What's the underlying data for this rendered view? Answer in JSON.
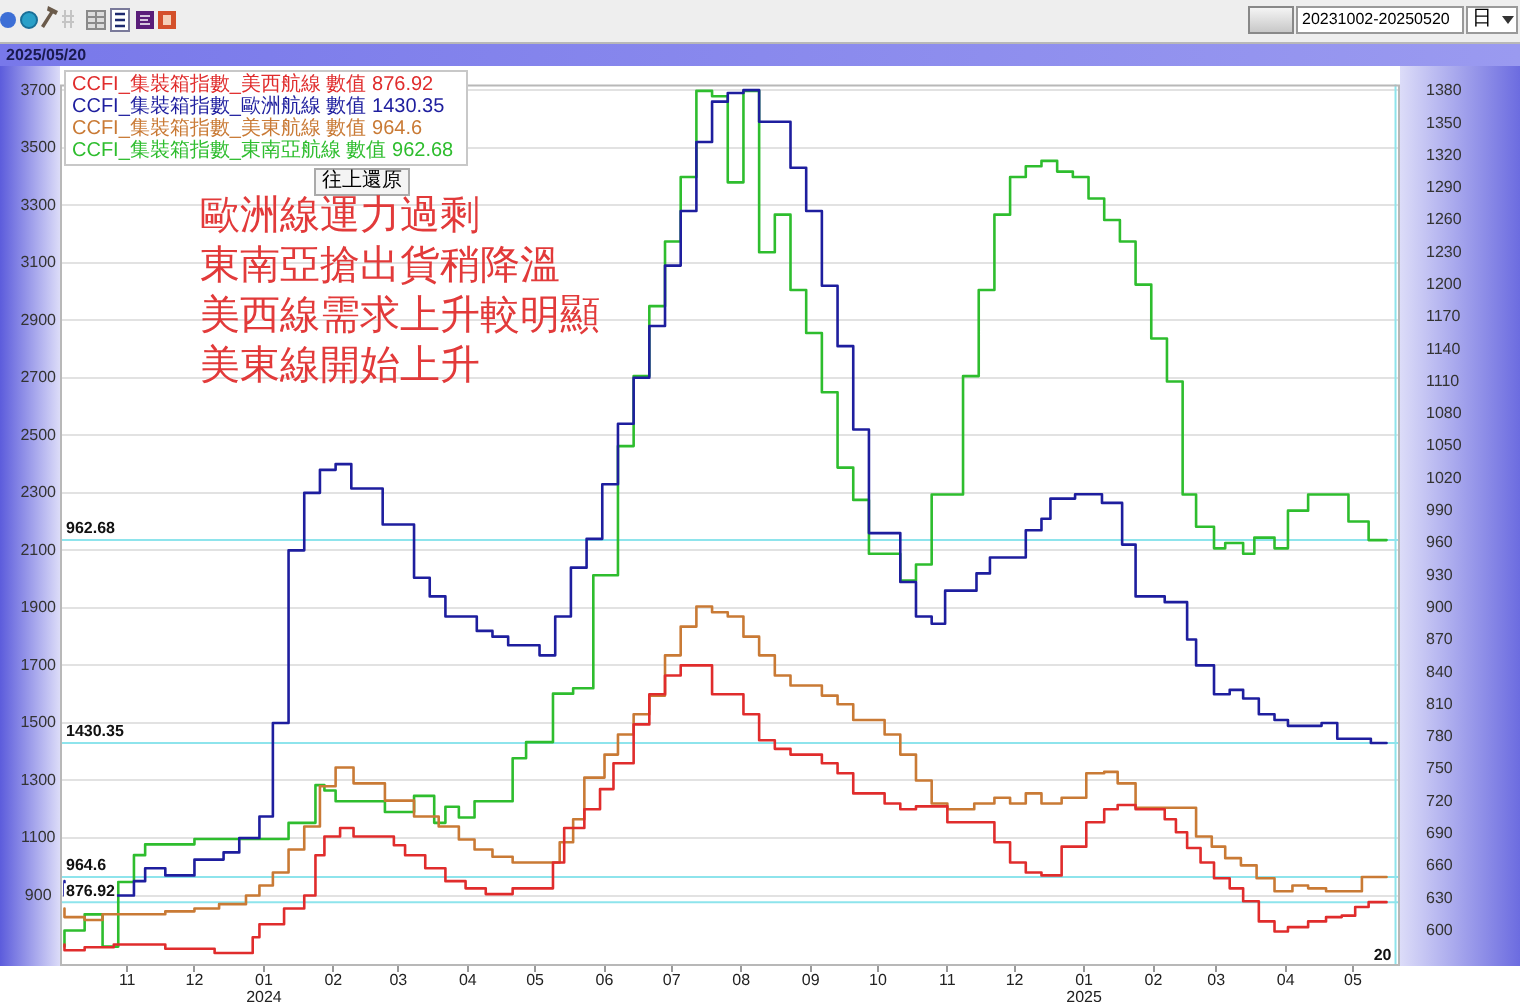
{
  "chart_data": {
    "type": "step",
    "annotations": [
      "2025/05/20",
      "歐洲線運力過剩",
      "東南亞搶出貨稍降溫",
      "美西線需求上升較明顯",
      "美東線開始上升",
      "往上還原",
      "20231002-20250520",
      "日"
    ],
    "xlim": [
      "2023-10-02",
      "2025-05-22"
    ],
    "xticks": [
      {
        "value": "2023-11",
        "label": "11"
      },
      {
        "value": "2023-12",
        "label": "12"
      },
      {
        "value": "2024-01",
        "label": "01\n2024"
      },
      {
        "value": "2024-02",
        "label": "02"
      },
      {
        "value": "2024-03",
        "label": "03"
      },
      {
        "value": "2024-04",
        "label": "04"
      },
      {
        "value": "2024-05",
        "label": "05"
      },
      {
        "value": "2024-06",
        "label": "06"
      },
      {
        "value": "2024-07",
        "label": "07"
      },
      {
        "value": "2024-08",
        "label": "08"
      },
      {
        "value": "2024-09",
        "label": "09"
      },
      {
        "value": "2024-10",
        "label": "10"
      },
      {
        "value": "2024-11",
        "label": "11"
      },
      {
        "value": "2024-12",
        "label": "12"
      },
      {
        "value": "2025-01",
        "label": "01\n2025"
      },
      {
        "value": "2025-02",
        "label": "02"
      },
      {
        "value": "2025-03",
        "label": "03"
      },
      {
        "value": "2025-04",
        "label": "04"
      },
      {
        "value": "2025-05",
        "label": "05"
      }
    ],
    "ylim": [
      655,
      3720
    ],
    "yticks": [
      900,
      1100,
      1300,
      1500,
      1700,
      1900,
      2100,
      2300,
      2500,
      2700,
      2900,
      3100,
      3300,
      3500,
      3700
    ],
    "y2lim": [
      567,
      1386
    ],
    "y2ticks": [
      600,
      630,
      660,
      690,
      720,
      750,
      780,
      810,
      840,
      870,
      900,
      930,
      960,
      990,
      1020,
      1050,
      1080,
      1110,
      1140,
      1170,
      1200,
      1230,
      1260,
      1290,
      1320,
      1350,
      1380
    ],
    "grid": "y",
    "legend": "top left",
    "ref_lines": [
      {
        "axis": "y2",
        "value": 962.68,
        "label": "962.68",
        "color": "#8ee4ec"
      },
      {
        "axis": "y",
        "value": 1430.35,
        "label": "1430.35",
        "color": "#8ee4ec"
      },
      {
        "axis": "y",
        "value": 964.6,
        "label": "964.6",
        "color": "#8ee4ec"
      },
      {
        "axis": "y",
        "value": 876.92,
        "label": "876.92",
        "color": "#8ee4ec"
      },
      {
        "axis": "x",
        "value": "2025-05-20",
        "label": "20",
        "color": "#8ee4ec"
      }
    ],
    "series": [
      {
        "name": "CCFI_集裝箱指數_美西航線 數值 876.92",
        "color": "#e02c2c",
        "x": [
          "2023-10-04",
          "2023-10-13",
          "2023-10-26",
          "2023-11-18",
          "2023-12-10",
          "2023-12-27",
          "2023-12-30",
          "2024-01-10",
          "2024-01-19",
          "2024-01-24",
          "2024-01-28",
          "2024-02-04",
          "2024-02-10",
          "2024-02-28",
          "2024-03-04",
          "2024-03-13",
          "2024-03-22",
          "2024-03-31",
          "2024-04-09",
          "2024-04-21",
          "2024-05-09",
          "2024-05-14",
          "2024-05-23",
          "2024-05-30",
          "2024-06-05",
          "2024-06-14",
          "2024-06-21",
          "2024-06-28",
          "2024-07-05",
          "2024-07-19",
          "2024-08-02",
          "2024-08-09",
          "2024-08-16",
          "2024-08-23",
          "2024-09-06",
          "2024-09-13",
          "2024-09-20",
          "2024-10-04",
          "2024-10-11",
          "2024-10-18",
          "2024-11-01",
          "2024-11-22",
          "2024-11-29",
          "2024-12-06",
          "2024-12-13",
          "2024-12-22",
          "2025-01-02",
          "2025-01-10",
          "2025-01-16",
          "2025-01-24",
          "2025-02-06",
          "2025-02-11",
          "2025-02-16",
          "2025-02-22",
          "2025-02-28",
          "2025-03-07",
          "2025-03-13",
          "2025-03-20",
          "2025-03-27",
          "2025-04-02",
          "2025-04-11",
          "2025-04-19",
          "2025-04-26",
          "2025-05-02",
          "2025-05-08",
          "2025-05-16"
        ],
        "values": [
          730,
          710,
          720,
          730,
          715,
          700,
          755,
          800,
          855,
          900,
          1040,
          1105,
          1135,
          1105,
          1075,
          1040,
          995,
          950,
          925,
          905,
          925,
          1015,
          1135,
          1200,
          1270,
          1360,
          1495,
          1600,
          1665,
          1700,
          1600,
          1530,
          1440,
          1410,
          1390,
          1360,
          1325,
          1255,
          1220,
          1200,
          1210,
          1155,
          1085,
          1015,
          980,
          970,
          1070,
          1155,
          1200,
          1215,
          1200,
          1165,
          1120,
          1065,
          1015,
          960,
          925,
          880,
          810,
          775,
          790,
          810,
          825,
          830,
          860,
          876.92
        ]
      },
      {
        "name": "CCFI_集裝箱指數_歐洲航線 數值 1430.35",
        "color": "#1e1e9e",
        "x": [
          "2023-10-04",
          "2023-11-04",
          "2023-11-09",
          "2023-11-18",
          "2023-12-01",
          "2023-12-14",
          "2023-12-21",
          "2023-12-30",
          "2024-01-05",
          "2024-01-12",
          "2024-01-19",
          "2024-01-26",
          "2024-02-02",
          "2024-02-09",
          "2024-02-23",
          "2024-03-08",
          "2024-03-15",
          "2024-03-22",
          "2024-04-05",
          "2024-04-12",
          "2024-04-19",
          "2024-05-03",
          "2024-05-10",
          "2024-05-17",
          "2024-05-24",
          "2024-05-31",
          "2024-06-07",
          "2024-06-14",
          "2024-06-21",
          "2024-06-28",
          "2024-07-05",
          "2024-07-12",
          "2024-07-19",
          "2024-07-26",
          "2024-08-02",
          "2024-08-09",
          "2024-08-23",
          "2024-08-30",
          "2024-09-06",
          "2024-09-13",
          "2024-09-20",
          "2024-09-27",
          "2024-10-11",
          "2024-10-18",
          "2024-10-25",
          "2024-10-31",
          "2024-11-14",
          "2024-11-20",
          "2024-12-06",
          "2024-12-13",
          "2024-12-17",
          "2024-12-28",
          "2025-01-09",
          "2025-01-18",
          "2025-01-24",
          "2025-02-06",
          "2025-02-16",
          "2025-02-20",
          "2025-02-28",
          "2025-03-07",
          "2025-03-13",
          "2025-03-20",
          "2025-03-27",
          "2025-04-02",
          "2025-04-17",
          "2025-04-24",
          "2025-05-09",
          "2025-05-16"
        ],
        "values": [
          950,
          900,
          950,
          995,
          970,
          1025,
          1050,
          1100,
          1175,
          1500,
          2100,
          2300,
          2380,
          2400,
          2315,
          2190,
          2005,
          1940,
          1870,
          1820,
          1800,
          1770,
          1735,
          1870,
          2040,
          2140,
          2330,
          2540,
          2700,
          2880,
          3090,
          3280,
          3520,
          3660,
          3690,
          3700,
          3590,
          3430,
          3280,
          3020,
          2810,
          2520,
          2160,
          1990,
          1870,
          1845,
          1960,
          2020,
          2075,
          2170,
          2210,
          2280,
          2295,
          2265,
          2120,
          1940,
          1920,
          1790,
          1700,
          1600,
          1615,
          1585,
          1530,
          1510,
          1490,
          1500,
          1445,
          1430.35
        ]
      },
      {
        "name": "CCFI_集裝箱指數_美東航線 數值 964.6",
        "color": "#c97a35",
        "x": [
          "2023-10-04",
          "2023-10-13",
          "2023-10-21",
          "2023-11-18",
          "2023-12-01",
          "2023-12-12",
          "2023-12-24",
          "2023-12-30",
          "2024-01-05",
          "2024-01-12",
          "2024-01-19",
          "2024-01-26",
          "2024-02-02",
          "2024-02-10",
          "2024-02-24",
          "2024-03-08",
          "2024-03-19",
          "2024-03-28",
          "2024-04-04",
          "2024-04-12",
          "2024-04-21",
          "2024-05-12",
          "2024-05-18",
          "2024-05-23",
          "2024-06-01",
          "2024-06-07",
          "2024-06-14",
          "2024-06-21",
          "2024-06-28",
          "2024-07-05",
          "2024-07-12",
          "2024-07-19",
          "2024-07-26",
          "2024-08-02",
          "2024-08-09",
          "2024-08-16",
          "2024-08-23",
          "2024-09-06",
          "2024-09-13",
          "2024-09-20",
          "2024-10-04",
          "2024-10-11",
          "2024-10-18",
          "2024-10-25",
          "2024-11-01",
          "2024-11-13",
          "2024-11-22",
          "2024-11-29",
          "2024-12-06",
          "2024-12-13",
          "2024-12-22",
          "2025-01-02",
          "2025-01-10",
          "2025-01-16",
          "2025-01-24",
          "2025-02-20",
          "2025-02-27",
          "2025-03-05",
          "2025-03-12",
          "2025-03-19",
          "2025-03-27",
          "2025-04-04",
          "2025-04-11",
          "2025-04-19",
          "2025-05-05",
          "2025-05-16"
        ],
        "values": [
          855,
          825,
          815,
          835,
          845,
          855,
          870,
          900,
          935,
          980,
          1060,
          1140,
          1280,
          1345,
          1290,
          1230,
          1175,
          1140,
          1095,
          1060,
          1035,
          1015,
          1085,
          1165,
          1310,
          1390,
          1460,
          1530,
          1595,
          1735,
          1835,
          1905,
          1885,
          1870,
          1800,
          1735,
          1665,
          1630,
          1595,
          1565,
          1510,
          1460,
          1390,
          1300,
          1220,
          1200,
          1220,
          1240,
          1220,
          1255,
          1220,
          1240,
          1325,
          1330,
          1290,
          1205,
          1105,
          1070,
          1030,
          1005,
          960,
          915,
          935,
          925,
          915,
          964.6
        ]
      },
      {
        "name": "CCFI_集裝箱指數_東南亞航線 數值 962.68",
        "color": "#2ebd2e",
        "axis": "y2",
        "x": [
          "2023-10-04",
          "2023-10-13",
          "2023-10-21",
          "2023-10-28",
          "2023-11-04",
          "2023-11-09",
          "2023-12-01",
          "2024-01-12",
          "2024-01-24",
          "2024-01-28",
          "2024-02-02",
          "2024-02-24",
          "2024-03-08",
          "2024-03-17",
          "2024-03-22",
          "2024-03-28",
          "2024-04-04",
          "2024-04-21",
          "2024-04-27",
          "2024-05-09",
          "2024-05-18",
          "2024-05-27",
          "2024-06-07",
          "2024-06-14",
          "2024-06-21",
          "2024-06-28",
          "2024-07-05",
          "2024-07-12",
          "2024-07-19",
          "2024-07-26",
          "2024-08-02",
          "2024-08-09",
          "2024-08-16",
          "2024-08-23",
          "2024-08-30",
          "2024-09-06",
          "2024-09-13",
          "2024-09-20",
          "2024-09-27",
          "2024-10-11",
          "2024-10-18",
          "2024-10-25",
          "2024-11-08",
          "2024-11-15",
          "2024-11-22",
          "2024-11-29",
          "2024-12-06",
          "2024-12-13",
          "2024-12-20",
          "2024-12-27",
          "2025-01-03",
          "2025-01-10",
          "2025-01-17",
          "2025-01-24",
          "2025-01-31",
          "2025-02-07",
          "2025-02-14",
          "2025-02-20",
          "2025-02-28",
          "2025-03-05",
          "2025-03-13",
          "2025-03-18",
          "2025-03-27",
          "2025-04-02",
          "2025-04-11",
          "2025-04-29",
          "2025-05-08",
          "2025-05-16"
        ],
        "values": [
          585,
          600,
          615,
          585,
          645,
          670,
          680,
          685,
          700,
          735,
          730,
          720,
          710,
          725,
          700,
          715,
          705,
          720,
          760,
          775,
          820,
          825,
          930,
          1050,
          1115,
          1180,
          1240,
          1300,
          1380,
          1375,
          1295,
          1380,
          1230,
          1265,
          1195,
          1155,
          1100,
          1030,
          1000,
          950,
          925,
          940,
          1005,
          1115,
          1195,
          1265,
          1300,
          1310,
          1315,
          1305,
          1300,
          1280,
          1260,
          1240,
          1200,
          1150,
          1110,
          1005,
          975,
          955,
          960,
          950,
          965,
          955,
          990,
          1005,
          980,
          962.68
        ]
      }
    ]
  }
}
